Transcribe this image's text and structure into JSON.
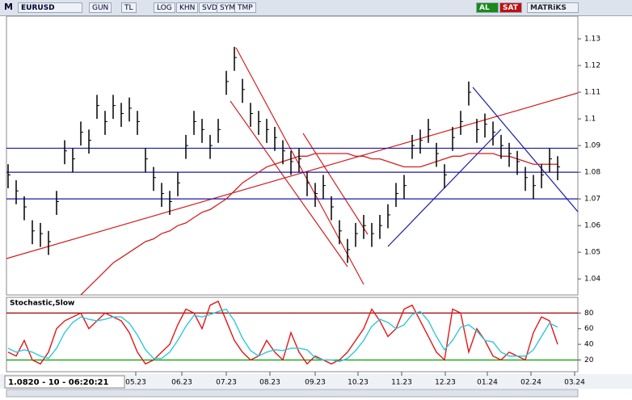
{
  "toolbar": {
    "logo": "M",
    "symbol": "EURUSD",
    "buttons": [
      "GUN",
      "TL",
      "LOG",
      "KHN",
      "SVD",
      "SYM",
      "TMP"
    ],
    "buy": "AL",
    "sell": "SAT",
    "brand": "MATRiKS"
  },
  "status": "1.0820 - 10 - 06:20:21",
  "chart_data": [
    {
      "type": "ohlc",
      "bar_color": "#000000",
      "high": [
        1.083,
        1.077,
        1.071,
        1.062,
        1.061,
        1.058,
        1.073,
        1.092,
        1.089,
        1.099,
        1.096,
        1.109,
        1.103,
        1.109,
        1.106,
        1.108,
        1.103,
        1.089,
        1.082,
        1.076,
        1.073,
        1.08,
        1.094,
        1.103,
        1.1,
        1.094,
        1.1,
        1.118,
        1.127,
        1.115,
        1.106,
        1.103,
        1.1,
        1.097,
        1.092,
        1.088,
        1.089,
        1.08,
        1.076,
        1.079,
        1.071,
        1.062,
        1.055,
        1.061,
        1.064,
        1.061,
        1.064,
        1.068,
        1.076,
        1.079,
        1.094,
        1.096,
        1.1,
        1.091,
        1.083,
        1.097,
        1.103,
        1.114,
        1.1,
        1.102,
        1.099,
        1.094,
        1.091,
        1.088,
        1.082,
        1.079,
        1.083,
        1.089,
        1.086
      ],
      "low": [
        1.074,
        1.068,
        1.062,
        1.053,
        1.052,
        1.049,
        1.064,
        1.083,
        1.08,
        1.09,
        1.087,
        1.1,
        1.094,
        1.1,
        1.097,
        1.099,
        1.094,
        1.08,
        1.073,
        1.067,
        1.064,
        1.071,
        1.085,
        1.094,
        1.091,
        1.085,
        1.091,
        1.109,
        1.118,
        1.106,
        1.097,
        1.094,
        1.091,
        1.088,
        1.083,
        1.079,
        1.08,
        1.071,
        1.067,
        1.07,
        1.062,
        1.053,
        1.046,
        1.052,
        1.055,
        1.052,
        1.055,
        1.059,
        1.067,
        1.07,
        1.085,
        1.087,
        1.091,
        1.082,
        1.074,
        1.088,
        1.094,
        1.105,
        1.091,
        1.093,
        1.09,
        1.085,
        1.082,
        1.079,
        1.073,
        1.07,
        1.074,
        1.08,
        1.077
      ],
      "close": [
        1.079,
        1.073,
        1.067,
        1.058,
        1.057,
        1.054,
        1.069,
        1.088,
        1.085,
        1.095,
        1.092,
        1.105,
        1.099,
        1.105,
        1.102,
        1.104,
        1.099,
        1.085,
        1.078,
        1.072,
        1.069,
        1.076,
        1.09,
        1.099,
        1.096,
        1.09,
        1.096,
        1.114,
        1.123,
        1.111,
        1.102,
        1.099,
        1.096,
        1.093,
        1.088,
        1.084,
        1.085,
        1.076,
        1.072,
        1.075,
        1.067,
        1.058,
        1.051,
        1.057,
        1.06,
        1.057,
        1.06,
        1.064,
        1.072,
        1.075,
        1.09,
        1.092,
        1.096,
        1.087,
        1.079,
        1.093,
        1.099,
        1.11,
        1.096,
        1.098,
        1.095,
        1.09,
        1.087,
        1.084,
        1.078,
        1.075,
        1.079,
        1.085,
        1.082
      ],
      "moving_average": {
        "color": "#d02020",
        "values": [
          null,
          null,
          null,
          null,
          null,
          null,
          null,
          null,
          null,
          1.034,
          1.037,
          1.04,
          1.043,
          1.046,
          1.048,
          1.05,
          1.052,
          1.054,
          1.055,
          1.057,
          1.058,
          1.06,
          1.061,
          1.063,
          1.065,
          1.066,
          1.068,
          1.07,
          1.073,
          1.076,
          1.078,
          1.08,
          1.082,
          1.083,
          1.084,
          1.085,
          1.086,
          1.086,
          1.087,
          1.087,
          1.087,
          1.087,
          1.087,
          1.086,
          1.086,
          1.085,
          1.085,
          1.084,
          1.083,
          1.082,
          1.082,
          1.082,
          1.083,
          1.084,
          1.085,
          1.086,
          1.086,
          1.087,
          1.087,
          1.087,
          1.087,
          1.086,
          1.086,
          1.085,
          1.084,
          1.083,
          1.083,
          1.083,
          1.083
        ]
      },
      "levels": {
        "color": "#1a1aa8",
        "values": [
          1.089,
          1.08,
          1.07
        ]
      },
      "xlim": [
        -0.2,
        70.5
      ],
      "xticks": [
        {
          "value": 15.8,
          "label": "05.23"
        },
        {
          "value": 21.5,
          "label": "06.23"
        },
        {
          "value": 27,
          "label": "07.23"
        },
        {
          "value": 32.4,
          "label": "08.23"
        },
        {
          "value": 38,
          "label": "09.23"
        },
        {
          "value": 43.3,
          "label": "10.23"
        },
        {
          "value": 48.7,
          "label": "11.23"
        },
        {
          "value": 54.1,
          "label": "12.23"
        },
        {
          "value": 59.3,
          "label": "01.24"
        },
        {
          "value": 64.7,
          "label": "02.24"
        },
        {
          "value": 70.1,
          "label": "03.24"
        }
      ],
      "ylim": [
        1.034,
        1.1385
      ],
      "yticks": [
        1.04,
        1.05,
        1.06,
        1.07,
        1.08,
        1.09,
        1.1,
        1.11,
        1.12,
        1.13
      ]
    },
    {
      "type": "line",
      "title": "Stochastic,Slow",
      "series": [
        {
          "color": "#e01818",
          "values": [
            30,
            25,
            45,
            20,
            15,
            30,
            60,
            70,
            75,
            80,
            60,
            70,
            80,
            75,
            70,
            55,
            30,
            15,
            20,
            30,
            40,
            65,
            85,
            80,
            60,
            90,
            95,
            70,
            45,
            30,
            20,
            25,
            45,
            30,
            20,
            55,
            30,
            15,
            25,
            20,
            15,
            20,
            30,
            45,
            60,
            85,
            70,
            50,
            60,
            85,
            90,
            70,
            50,
            30,
            20,
            85,
            80,
            30,
            60,
            45,
            25,
            20,
            30,
            25,
            20,
            55,
            75,
            70,
            40
          ]
        },
        {
          "color": "#30c8d8",
          "values": [
            35,
            30,
            33,
            30,
            25,
            22,
            35,
            55,
            68,
            75,
            72,
            70,
            72,
            75,
            75,
            67,
            52,
            33,
            22,
            22,
            30,
            45,
            63,
            77,
            75,
            78,
            82,
            85,
            70,
            48,
            32,
            25,
            30,
            33,
            32,
            35,
            35,
            33,
            23,
            20,
            20,
            18,
            22,
            32,
            45,
            63,
            72,
            68,
            60,
            65,
            78,
            82,
            70,
            50,
            33,
            45,
            62,
            65,
            57,
            45,
            43,
            30,
            25,
            25,
            25,
            33,
            50,
            67,
            62
          ]
        }
      ],
      "levels": [
        {
          "value": 80,
          "color": "#a00000"
        },
        {
          "value": 20,
          "color": "#00a000"
        }
      ],
      "xlim": [
        -0.2,
        70.5
      ],
      "ylim": [
        5,
        100
      ],
      "yticks": [
        20,
        40,
        60,
        80
      ]
    }
  ]
}
